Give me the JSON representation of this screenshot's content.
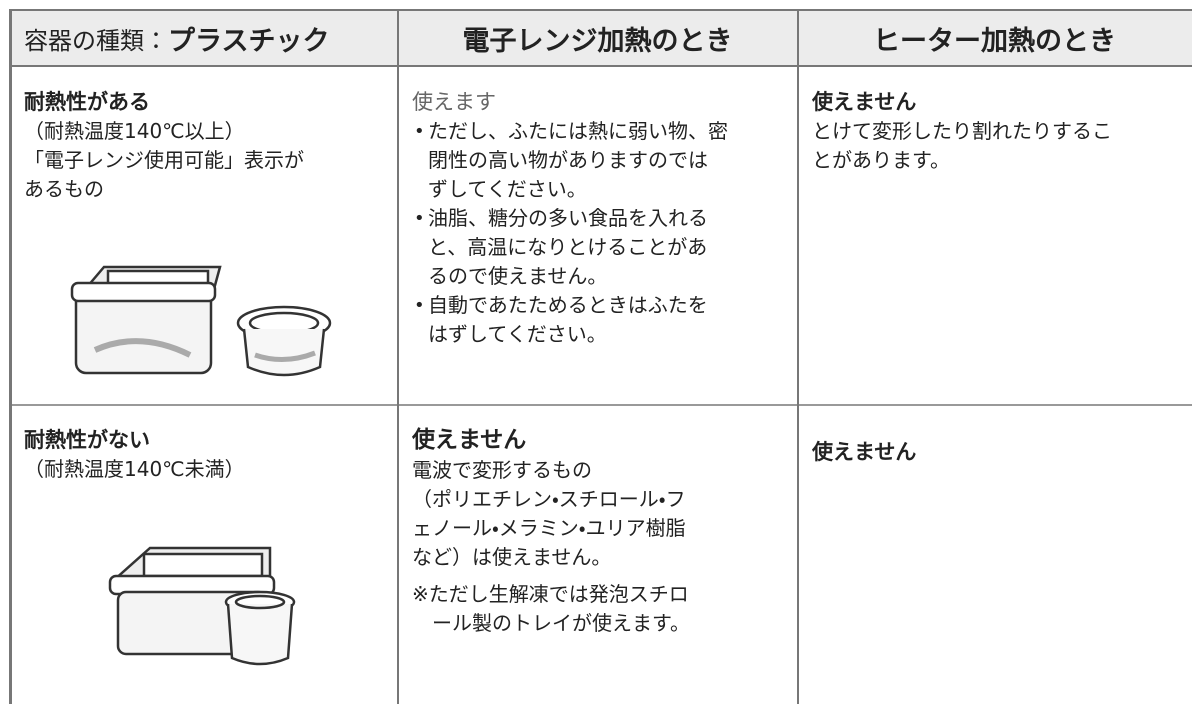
{
  "header": {
    "category_label": "容器の種類：",
    "category_value": "プラスチック",
    "microwave": "電子レンジ加熱のとき",
    "heater": "ヒーター加熱のとき"
  },
  "rows": [
    {
      "type": {
        "title": "耐熱性がある",
        "lines": [
          "（耐熱温度140℃以上）",
          "「電子レンジ使用可能」表示が",
          "あるもの"
        ]
      },
      "microwave": {
        "verdict": "使えます",
        "bullets": [
          [
            "ただし、ふたには熱に弱い物、密",
            "閉性の高い物がありますのでは",
            "ずしてください。"
          ],
          [
            "油脂、糖分の多い食品を入れる",
            "と、高温になりとけることがあ",
            "るので使えません。"
          ],
          [
            "自動であたためるときはふたを",
            "はずしてください。"
          ]
        ]
      },
      "heater": {
        "verdict": "使えません",
        "lines": [
          "とけて変形したり割れたりするこ",
          "とがあります。"
        ]
      }
    },
    {
      "type": {
        "title": "耐熱性がない",
        "lines": [
          "（耐熱温度140℃未満）"
        ]
      },
      "microwave": {
        "verdict": "使えません",
        "lines": [
          "電波で変形するもの",
          "（ポリエチレン・スチロール・フ",
          "ェノール・メラミン・ユリア樹脂",
          "など）は使えません。"
        ],
        "note": [
          "※ただし生解凍では発泡スチロ",
          "ール製のトレイが使えます。"
        ]
      },
      "heater": {
        "verdict": "使えません"
      }
    }
  ]
}
